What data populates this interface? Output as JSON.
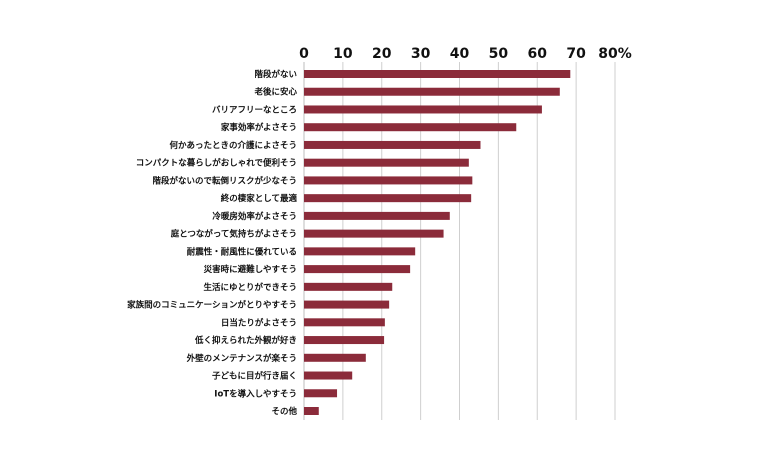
{
  "chart_data": {
    "type": "bar",
    "orientation": "horizontal",
    "title": "",
    "xlabel": "",
    "ylabel": "",
    "xlim": [
      0,
      80
    ],
    "x_ticks": [
      0,
      10,
      20,
      30,
      40,
      50,
      60,
      70,
      80
    ],
    "x_tick_labels": [
      "0",
      "10",
      "20",
      "30",
      "40",
      "50",
      "60",
      "70",
      "80%"
    ],
    "grid": true,
    "legend": "none",
    "bar_color": "#8b2b3a",
    "grid_color": "#cfcfcf",
    "categories": [
      "階段がない",
      "老後に安心",
      "バリアフリーなところ",
      "家事効率がよさそう",
      "何かあったときの介護によさそう",
      "コンパクトな暮らしがおしゃれで便利そう",
      "階段がないので転倒リスクが少なそう",
      "終の棲家として最適",
      "冷暖房効率がよさそう",
      "庭とつながって気持ちがよさそう",
      "耐震性・耐風性に優れている",
      "災害時に避難しやすそう",
      "生活にゆとりができそう",
      "家族間のコミュニケーションがとりやすそう",
      "日当たりがよさそう",
      "低く抑えられた外観が好き",
      "外壁のメンテナンスが楽そう",
      "子どもに目が行き届く",
      "IoTを導入しやすそう",
      "その他"
    ],
    "values": [
      68.5,
      65.8,
      61.2,
      54.6,
      45.4,
      42.4,
      43.3,
      43.0,
      37.5,
      35.9,
      28.6,
      27.3,
      22.7,
      21.9,
      20.8,
      20.6,
      15.9,
      12.4,
      8.5,
      3.8
    ]
  }
}
